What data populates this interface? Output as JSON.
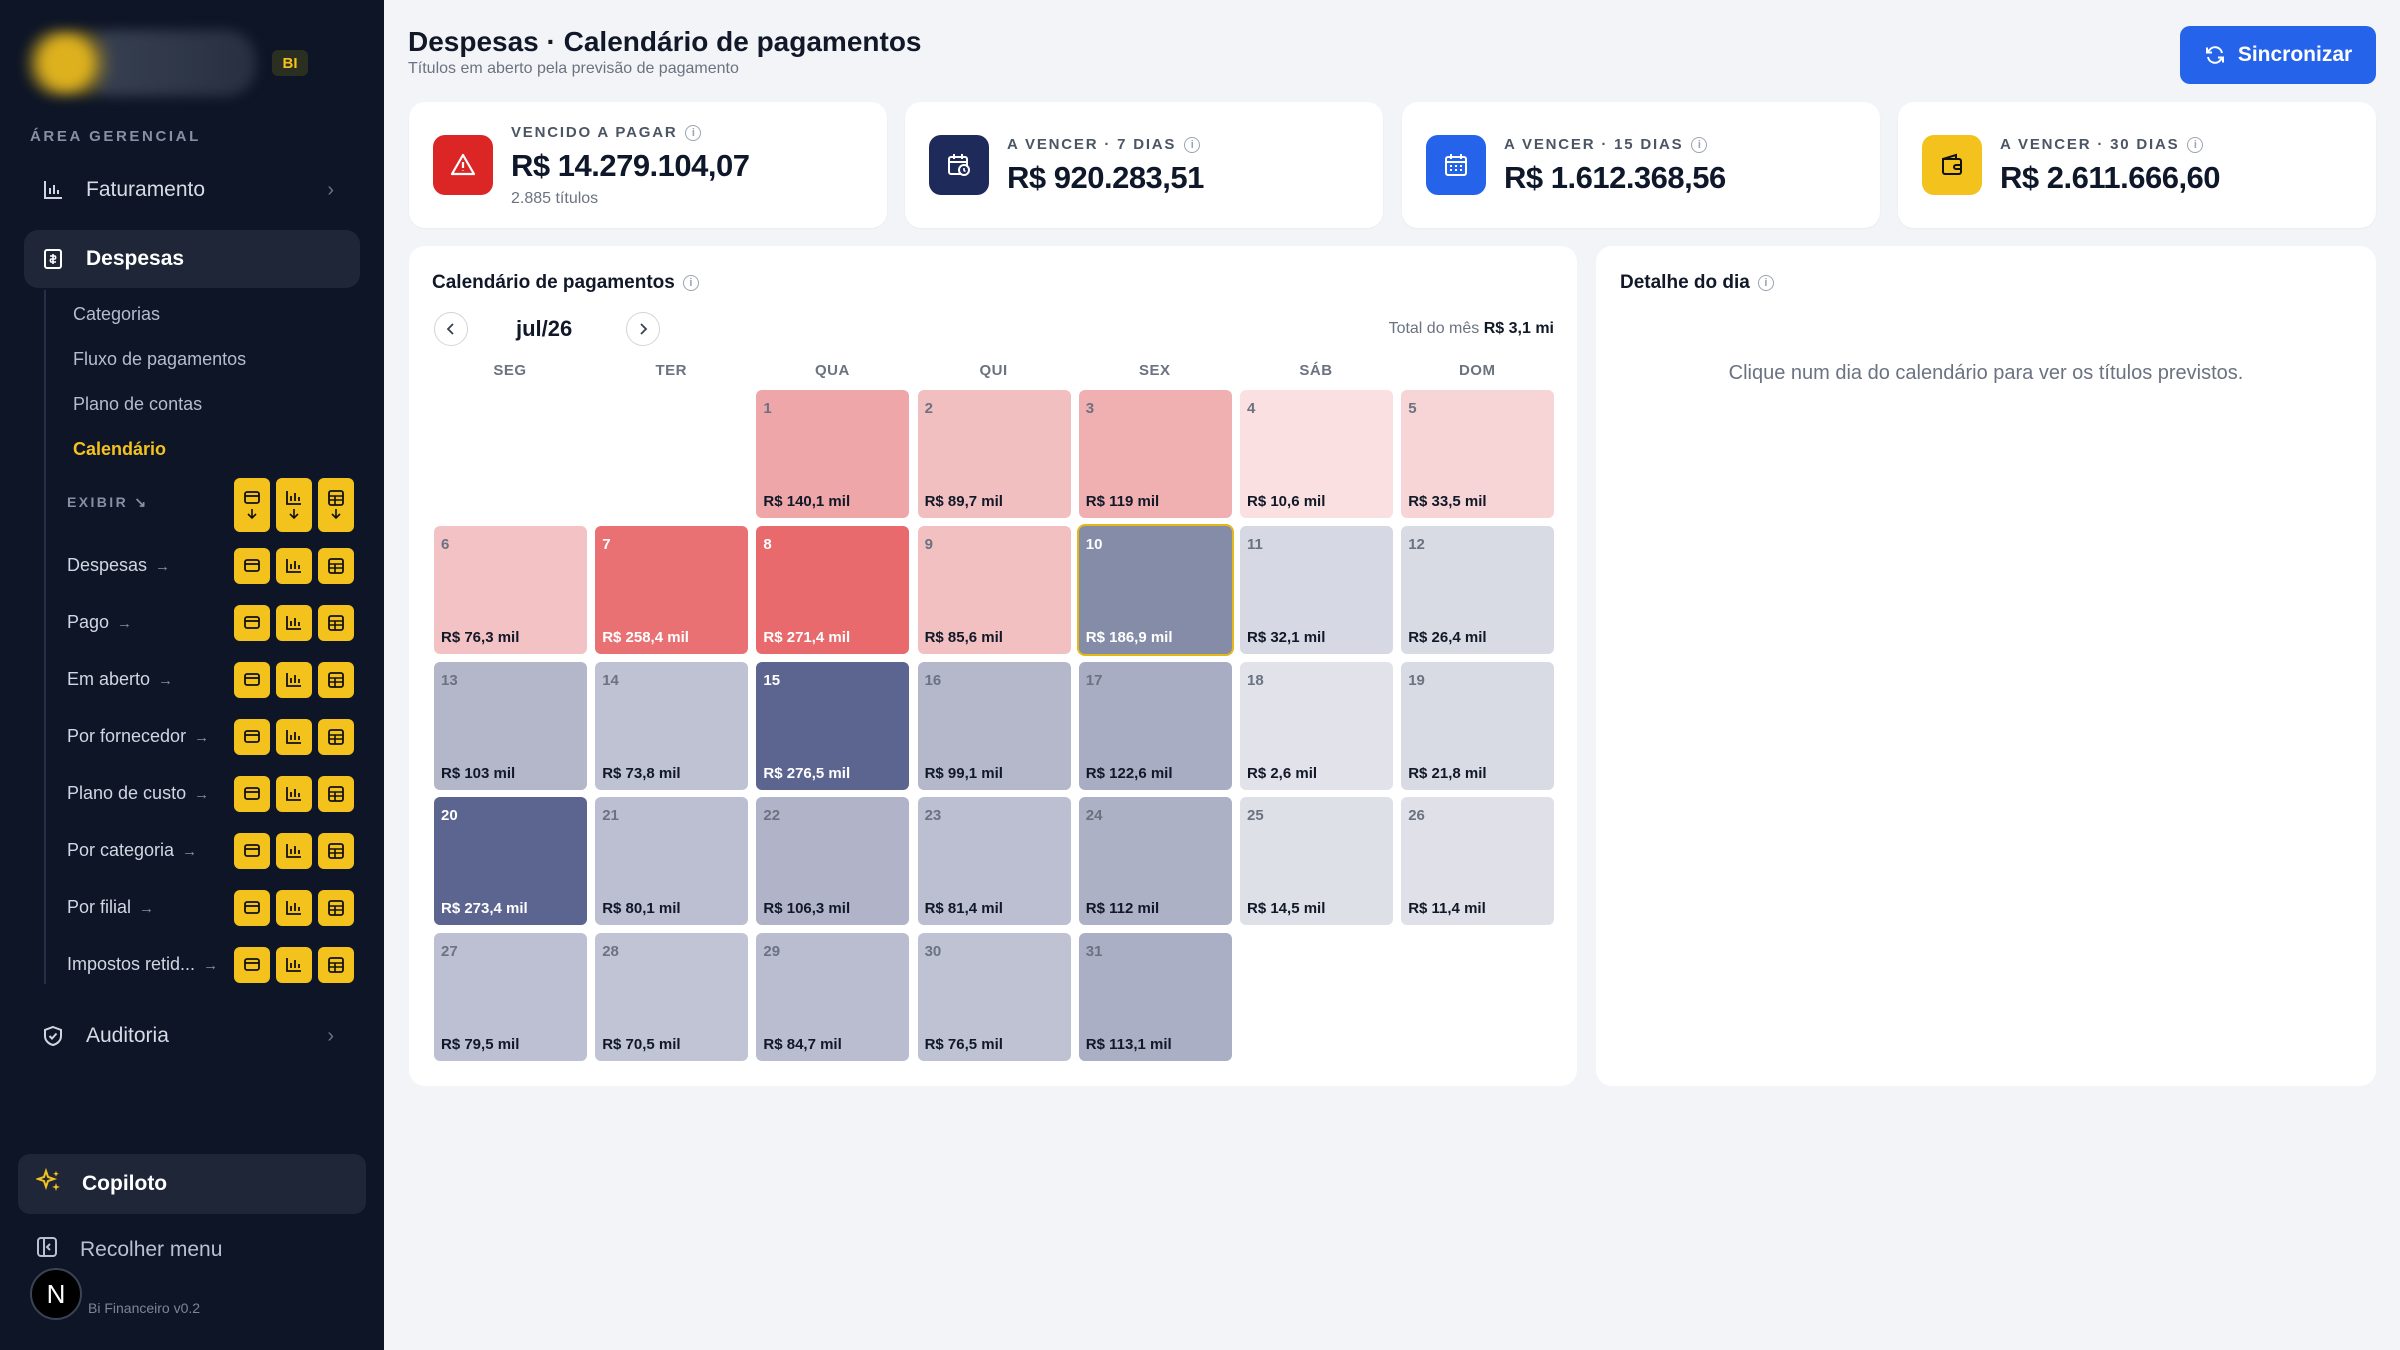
{
  "sidebar": {
    "badge": "BI",
    "section_label": "ÁREA GERENCIAL",
    "nav_faturamento": "Faturamento",
    "nav_despesas": "Despesas",
    "sub_items": [
      "Categorias",
      "Fluxo de pagamentos",
      "Plano de contas",
      "Calendário"
    ],
    "active_sub": "Calendário",
    "exibir_label": "EXIBIR ↘",
    "rows": [
      "Despesas",
      "Pago",
      "Em aberto",
      "Por fornecedor",
      "Plano de custo",
      "Por categoria",
      "Por filial",
      "Impostos retid..."
    ],
    "row_arrow": "→",
    "nav_auditoria": "Auditoria",
    "copiloto": "Copiloto",
    "recolher": "Recolher menu",
    "avatar_letter": "N",
    "version": "Bi Financeiro v0.2"
  },
  "header": {
    "title": "Despesas · Calendário de pagamentos",
    "subtitle": "Títulos em aberto pela previsão de pagamento",
    "sync_button": "Sincronizar"
  },
  "kpis": [
    {
      "label": "VENCIDO A PAGAR",
      "value": "R$ 14.279.104,07",
      "sub": "2.885 títulos",
      "icon": "warning-icon",
      "color": "#dc2626"
    },
    {
      "label": "A VENCER · 7 DIAS",
      "value": "R$ 920.283,51",
      "icon": "calendar-clock-icon",
      "color": "#1e2a5a"
    },
    {
      "label": "A VENCER · 15 DIAS",
      "value": "R$ 1.612.368,56",
      "icon": "calendar-icon",
      "color": "#2563eb"
    },
    {
      "label": "A VENCER · 30 DIAS",
      "value": "R$ 2.611.666,60",
      "icon": "wallet-icon",
      "color": "#f4c21d"
    }
  ],
  "calendar": {
    "title": "Calendário de pagamentos",
    "month": "jul/26",
    "total_label": "Total do mês",
    "total_value": "R$ 3,1 mi",
    "weekdays": [
      "SEG",
      "TER",
      "QUA",
      "QUI",
      "SEX",
      "SÁB",
      "DOM"
    ],
    "first_weekday_index": 2,
    "selected_day": 10,
    "days": [
      {
        "day": "1",
        "amount": "R$ 140,1 mil",
        "color": "#efa6a8"
      },
      {
        "day": "2",
        "amount": "R$ 89,7 mil",
        "color": "#f2bfc1"
      },
      {
        "day": "3",
        "amount": "R$ 119 mil",
        "color": "#f0b0b2"
      },
      {
        "day": "4",
        "amount": "R$ 10,6 mil",
        "color": "#fae0e1"
      },
      {
        "day": "5",
        "amount": "R$ 33,5 mil",
        "color": "#f7d5d6"
      },
      {
        "day": "6",
        "amount": "R$ 76,3 mil",
        "color": "#f3c2c4"
      },
      {
        "day": "7",
        "amount": "R$ 258,4 mil",
        "color": "#e97173",
        "dark": true
      },
      {
        "day": "8",
        "amount": "R$ 271,4 mil",
        "color": "#e86a6d",
        "dark": true
      },
      {
        "day": "9",
        "amount": "R$ 85,6 mil",
        "color": "#f2c0c1"
      },
      {
        "day": "10",
        "amount": "R$ 186,9 mil",
        "color": "#858ca8",
        "dark": true
      },
      {
        "day": "11",
        "amount": "R$ 32,1 mil",
        "color": "#d6d8e3"
      },
      {
        "day": "12",
        "amount": "R$ 26,4 mil",
        "color": "#d8dae4"
      },
      {
        "day": "13",
        "amount": "R$ 103 mil",
        "color": "#b4b7ca"
      },
      {
        "day": "14",
        "amount": "R$ 73,8 mil",
        "color": "#bfc2d3"
      },
      {
        "day": "15",
        "amount": "R$ 276,5 mil",
        "color": "#5c6590",
        "dark": true
      },
      {
        "day": "16",
        "amount": "R$ 99,1 mil",
        "color": "#b5b8cb"
      },
      {
        "day": "17",
        "amount": "R$ 122,6 mil",
        "color": "#a9adc4"
      },
      {
        "day": "18",
        "amount": "R$ 2,6 mil",
        "color": "#e2e3ea"
      },
      {
        "day": "19",
        "amount": "R$ 21,8 mil",
        "color": "#d9dbe4"
      },
      {
        "day": "20",
        "amount": "R$ 273,4 mil",
        "color": "#5c6590",
        "dark": true
      },
      {
        "day": "21",
        "amount": "R$ 80,1 mil",
        "color": "#bcbfd1"
      },
      {
        "day": "22",
        "amount": "R$ 106,3 mil",
        "color": "#b1b4c8"
      },
      {
        "day": "23",
        "amount": "R$ 81,4 mil",
        "color": "#bcbfd1"
      },
      {
        "day": "24",
        "amount": "R$ 112 mil",
        "color": "#adb1c6"
      },
      {
        "day": "25",
        "amount": "R$ 14,5 mil",
        "color": "#dee0e8"
      },
      {
        "day": "26",
        "amount": "R$ 11,4 mil",
        "color": "#dfe0e8"
      },
      {
        "day": "27",
        "amount": "R$ 79,5 mil",
        "color": "#bdc0d2"
      },
      {
        "day": "28",
        "amount": "R$ 70,5 mil",
        "color": "#c1c4d4"
      },
      {
        "day": "29",
        "amount": "R$ 84,7 mil",
        "color": "#babdd0"
      },
      {
        "day": "30",
        "amount": "R$ 76,5 mil",
        "color": "#bfc2d3"
      },
      {
        "day": "31",
        "amount": "R$ 113,1 mil",
        "color": "#abafc5"
      }
    ]
  },
  "detail": {
    "title": "Detalhe do dia",
    "hint": "Clique num dia do calendário para ver os títulos previstos."
  }
}
